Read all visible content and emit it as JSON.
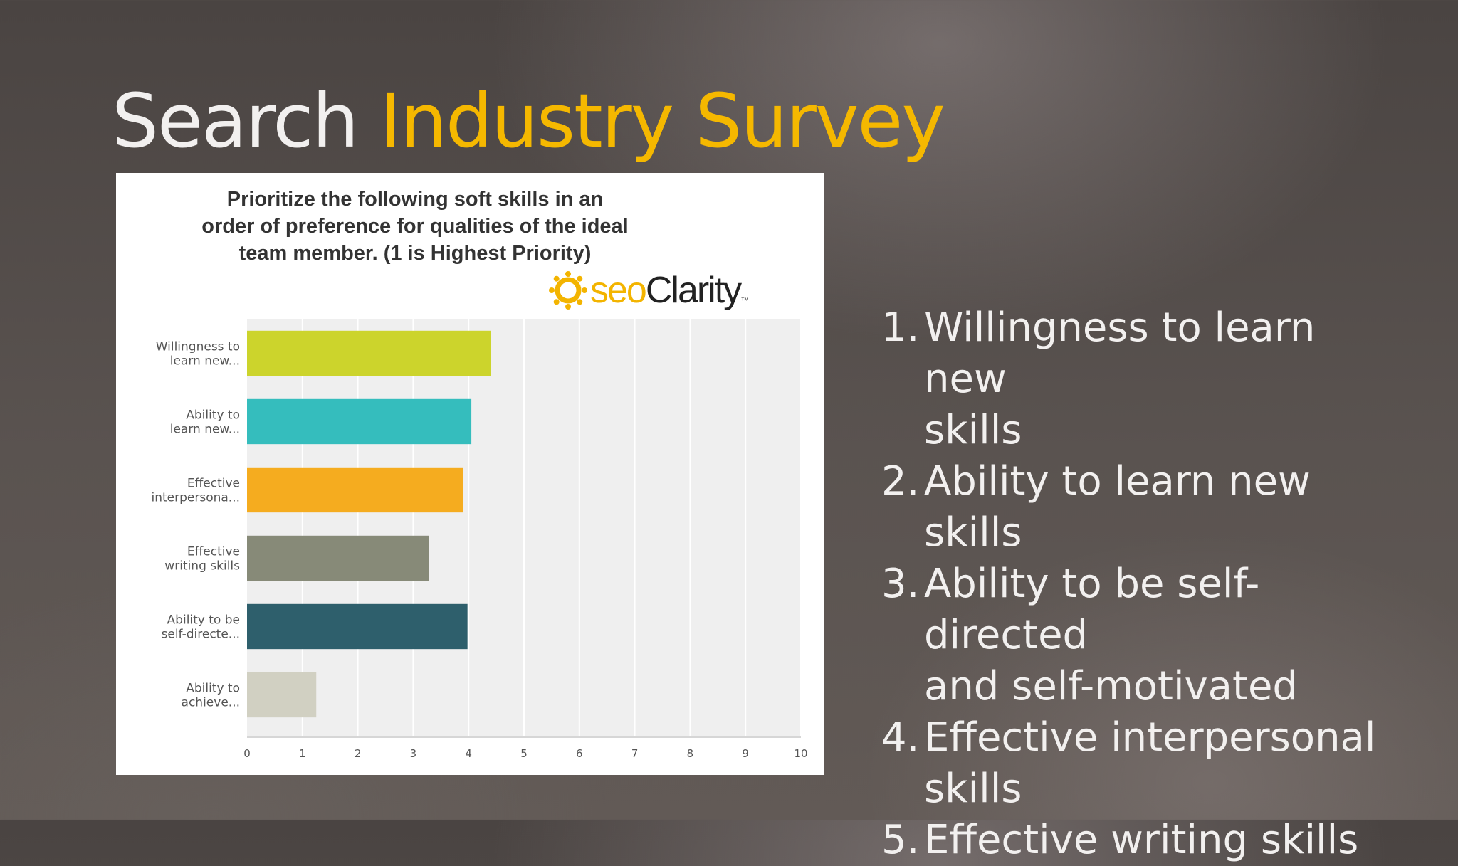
{
  "slide": {
    "title_part1": "Search",
    "title_part2": "Industry Survey",
    "title_accent_color": "#f5b800"
  },
  "logo": {
    "brand_prefix": "seo",
    "brand_suffix": "Clarity",
    "trademark": "™",
    "icon": "sun-icon"
  },
  "chart_data": {
    "type": "bar",
    "orientation": "horizontal",
    "title": "Prioritize the following soft skills in an order of preference for qualities of the ideal team member. (1 is Highest Priority)",
    "title_lines": [
      "Prioritize the following soft skills in an",
      "order of preference for qualities of the ideal",
      "team member. (1 is Highest Priority)"
    ],
    "categories": [
      [
        "Willingness to",
        "learn new..."
      ],
      [
        "Ability to",
        "learn new..."
      ],
      [
        "Effective",
        "interpersona..."
      ],
      [
        "Effective",
        "writing skills"
      ],
      [
        "Ability to be",
        "self-directe..."
      ],
      [
        "Ability to",
        "achieve..."
      ]
    ],
    "values": [
      4.4,
      4.05,
      3.9,
      3.28,
      3.98,
      1.25
    ],
    "colors": [
      "#ccd42c",
      "#35bdbd",
      "#f5ac1f",
      "#878a78",
      "#2e5f6c",
      "#d1d0c2"
    ],
    "xlim": [
      0,
      10
    ],
    "xticks": [
      "0",
      "1",
      "2",
      "3",
      "4",
      "5",
      "6",
      "7",
      "8",
      "9",
      "10"
    ],
    "grid": true,
    "legend": "none",
    "xlabel": "",
    "ylabel": ""
  },
  "ranked_list": [
    {
      "number": "1.",
      "lines": [
        "Willingness to learn new",
        "skills"
      ]
    },
    {
      "number": "2.",
      "lines": [
        "Ability to learn new skills"
      ]
    },
    {
      "number": "3.",
      "lines": [
        "Ability to be self-directed",
        "and self-motivated"
      ]
    },
    {
      "number": "4.",
      "lines": [
        "Effective interpersonal",
        "skills"
      ]
    },
    {
      "number": "5.",
      "lines": [
        "Effective writing skills"
      ]
    }
  ]
}
